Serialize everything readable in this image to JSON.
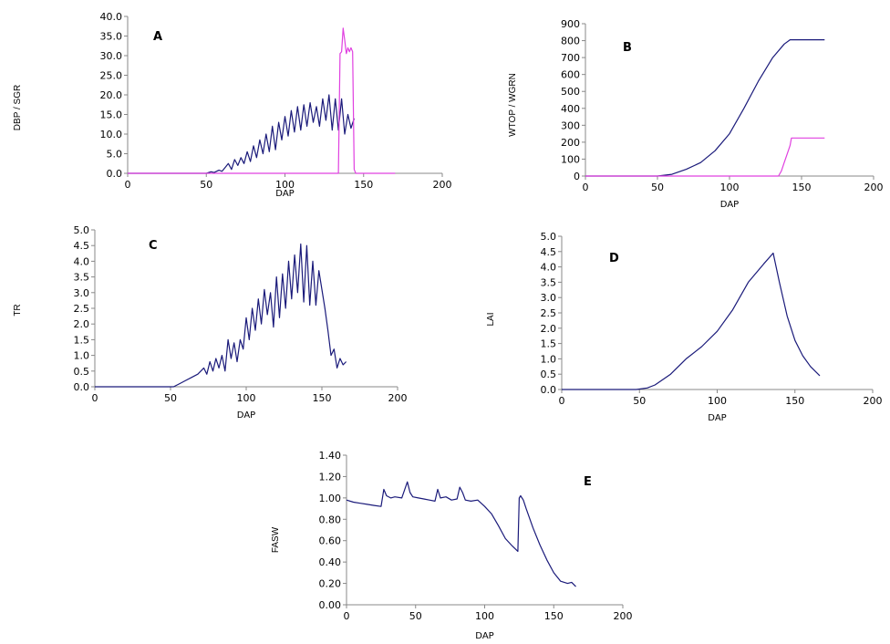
{
  "colors": {
    "navy": "#1a1a7a",
    "magenta": "#e040e0",
    "axis": "#888888"
  },
  "chart_data": [
    {
      "type": "line",
      "panel_label": "A",
      "xlabel": "DAP",
      "ylabel": "DBP / SGR",
      "xlim": [
        0,
        200
      ],
      "ylim": [
        0,
        40
      ],
      "x_ticks": [
        "0",
        "50",
        "100",
        "150",
        "200"
      ],
      "y_ticks": [
        "0.0",
        "5.0",
        "10.0",
        "15.0",
        "20.0",
        "25.0",
        "30.0",
        "35.0",
        "40.0"
      ],
      "series": [
        {
          "color": "#1a1a7a",
          "x": [
            0,
            50,
            53,
            55,
            58,
            60,
            62,
            64,
            66,
            68,
            70,
            72,
            74,
            76,
            78,
            80,
            82,
            84,
            86,
            88,
            90,
            92,
            94,
            96,
            98,
            100,
            102,
            104,
            106,
            108,
            110,
            112,
            114,
            116,
            118,
            120,
            122,
            124,
            126,
            128,
            130,
            132,
            134,
            136,
            138,
            140,
            142,
            144
          ],
          "y": [
            0,
            0,
            0.4,
            0.2,
            0.8,
            0.5,
            1.5,
            2.5,
            1.0,
            3.5,
            2.0,
            4.0,
            2.5,
            5.5,
            3.0,
            7.0,
            4.0,
            8.5,
            5.0,
            10.0,
            5.5,
            12.0,
            6.0,
            13.0,
            8.5,
            14.5,
            9.5,
            16.0,
            10.5,
            17.0,
            11.0,
            17.5,
            12.0,
            18.0,
            13.0,
            17.0,
            12.0,
            19.0,
            13.5,
            20.0,
            11.0,
            19.0,
            11.0,
            19.0,
            10.0,
            15.0,
            11.5,
            14.0
          ]
        },
        {
          "color": "#e040e0",
          "x": [
            0,
            134,
            135,
            136,
            137,
            138,
            139,
            140,
            141,
            142,
            143,
            144,
            145,
            146,
            170
          ],
          "y": [
            0,
            0,
            30.5,
            31.0,
            37.0,
            34.0,
            30.5,
            32.0,
            31.0,
            32.0,
            31.0,
            1.0,
            0,
            0,
            0
          ]
        }
      ]
    },
    {
      "type": "line",
      "panel_label": "B",
      "xlabel": "DAP",
      "ylabel": "WTOP / WGRN",
      "xlim": [
        0,
        200
      ],
      "ylim": [
        0,
        900
      ],
      "x_ticks": [
        "0",
        "50",
        "100",
        "150",
        "200"
      ],
      "y_ticks": [
        "0",
        "100",
        "200",
        "300",
        "400",
        "500",
        "600",
        "700",
        "800",
        "900"
      ],
      "series": [
        {
          "color": "#1a1a7a",
          "x": [
            0,
            50,
            60,
            70,
            80,
            90,
            100,
            110,
            120,
            130,
            138,
            142,
            166
          ],
          "y": [
            0,
            0,
            10,
            40,
            80,
            150,
            250,
            400,
            560,
            700,
            780,
            805,
            805
          ]
        },
        {
          "color": "#e040e0",
          "x": [
            0,
            134,
            136,
            138,
            140,
            142,
            143,
            166
          ],
          "y": [
            0,
            0,
            30,
            80,
            130,
            180,
            225,
            225
          ]
        }
      ]
    },
    {
      "type": "line",
      "panel_label": "C",
      "xlabel": "DAP",
      "ylabel": "TR",
      "xlim": [
        0,
        200
      ],
      "ylim": [
        0,
        5
      ],
      "x_ticks": [
        "0",
        "50",
        "100",
        "150",
        "200"
      ],
      "y_ticks": [
        "0.0",
        "0.5",
        "1.0",
        "1.5",
        "2.0",
        "2.5",
        "3.0",
        "3.5",
        "4.0",
        "4.5",
        "5.0"
      ],
      "series": [
        {
          "color": "#1a1a7a",
          "x": [
            0,
            52,
            56,
            60,
            64,
            68,
            72,
            74,
            76,
            78,
            80,
            82,
            84,
            86,
            88,
            90,
            92,
            94,
            96,
            98,
            100,
            102,
            104,
            106,
            108,
            110,
            112,
            114,
            116,
            118,
            120,
            122,
            124,
            126,
            128,
            130,
            132,
            134,
            136,
            138,
            140,
            142,
            144,
            146,
            148,
            150,
            152,
            154,
            156,
            158,
            160,
            162,
            164,
            166
          ],
          "y": [
            0,
            0,
            0.1,
            0.2,
            0.3,
            0.4,
            0.6,
            0.4,
            0.8,
            0.5,
            0.9,
            0.6,
            1.0,
            0.5,
            1.5,
            0.9,
            1.4,
            0.8,
            1.5,
            1.2,
            2.2,
            1.5,
            2.5,
            1.8,
            2.8,
            2.0,
            3.1,
            2.3,
            3.0,
            1.9,
            3.5,
            2.2,
            3.6,
            2.5,
            4.0,
            2.8,
            4.2,
            3.0,
            4.55,
            2.7,
            4.5,
            2.6,
            4.0,
            2.6,
            3.7,
            3.1,
            2.5,
            1.8,
            1.0,
            1.2,
            0.6,
            0.9,
            0.7,
            0.8
          ]
        }
      ]
    },
    {
      "type": "line",
      "panel_label": "D",
      "xlabel": "DAP",
      "ylabel": "LAI",
      "xlim": [
        0,
        200
      ],
      "ylim": [
        0,
        5
      ],
      "x_ticks": [
        "0",
        "50",
        "100",
        "150",
        "200"
      ],
      "y_ticks": [
        "0.0",
        "0.5",
        "1.0",
        "1.5",
        "2.0",
        "2.5",
        "3.0",
        "3.5",
        "4.0",
        "4.5",
        "5.0"
      ],
      "series": [
        {
          "color": "#1a1a7a",
          "x": [
            0,
            48,
            55,
            60,
            70,
            80,
            90,
            100,
            110,
            120,
            130,
            136,
            140,
            145,
            150,
            155,
            160,
            166
          ],
          "y": [
            0,
            0,
            0.05,
            0.15,
            0.5,
            1.0,
            1.4,
            1.9,
            2.6,
            3.5,
            4.1,
            4.45,
            3.5,
            2.4,
            1.6,
            1.1,
            0.75,
            0.45
          ]
        }
      ]
    },
    {
      "type": "line",
      "panel_label": "E",
      "xlabel": "DAP",
      "ylabel": "FASW",
      "xlim": [
        0,
        200
      ],
      "ylim": [
        0,
        1.4
      ],
      "x_ticks": [
        "0",
        "50",
        "100",
        "150",
        "200"
      ],
      "y_ticks": [
        "0.00",
        "0.20",
        "0.40",
        "0.60",
        "0.80",
        "1.00",
        "1.20",
        "1.40"
      ],
      "series": [
        {
          "color": "#1a1a7a",
          "x": [
            0,
            5,
            10,
            15,
            20,
            25,
            27,
            29,
            32,
            35,
            40,
            44,
            46,
            48,
            52,
            56,
            60,
            64,
            66,
            68,
            72,
            76,
            80,
            82,
            84,
            86,
            90,
            95,
            100,
            105,
            110,
            115,
            120,
            124,
            125,
            126,
            128,
            130,
            135,
            140,
            145,
            150,
            155,
            160,
            163,
            166
          ],
          "y": [
            0.98,
            0.96,
            0.95,
            0.94,
            0.93,
            0.92,
            1.08,
            1.02,
            1.0,
            1.01,
            1.0,
            1.15,
            1.05,
            1.01,
            1.0,
            0.99,
            0.98,
            0.97,
            1.08,
            1.0,
            1.01,
            0.98,
            0.99,
            1.1,
            1.05,
            0.98,
            0.97,
            0.98,
            0.92,
            0.85,
            0.74,
            0.62,
            0.55,
            0.5,
            1.0,
            1.02,
            0.98,
            0.9,
            0.72,
            0.56,
            0.42,
            0.3,
            0.22,
            0.2,
            0.21,
            0.17
          ]
        }
      ]
    }
  ]
}
